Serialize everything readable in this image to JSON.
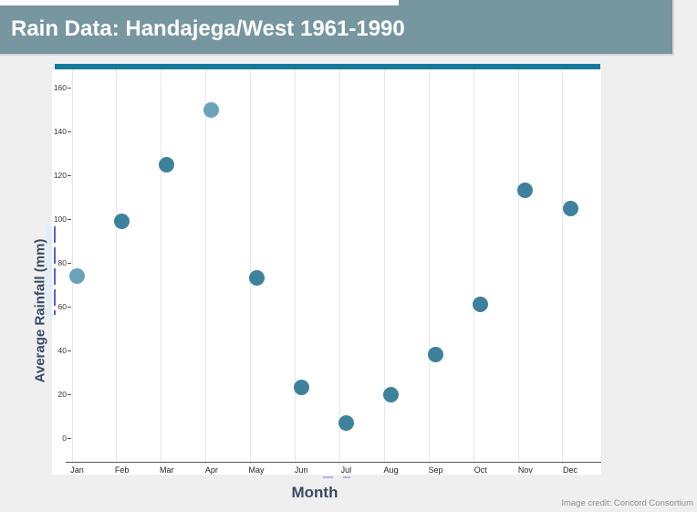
{
  "header": {
    "title": "Rain Data: Handajega/West 1961-1990",
    "bg_color": "#7696a0",
    "text_color": "#ffffff"
  },
  "chart": {
    "accent_bar_color": "#17799c",
    "credit": "Image credit: Concord Consortium"
  },
  "chart_data": {
    "type": "scatter",
    "title": "Rain Data: Handajega/West 1961-1990",
    "xlabel": "Month",
    "ylabel": "Average Rainfall (mm)",
    "categories": [
      "Jan",
      "Feb",
      "Mar",
      "Apr",
      "May",
      "Jun",
      "Jul",
      "Aug",
      "Sep",
      "Oct",
      "Nov",
      "Dec"
    ],
    "values": [
      74,
      99,
      125,
      150,
      73,
      23,
      7,
      20,
      38,
      61,
      113,
      105
    ],
    "yticks": [
      0,
      20,
      40,
      60,
      80,
      100,
      120,
      140,
      160
    ],
    "ylim": [
      0,
      168
    ],
    "grid": "vertical-only",
    "legend": "none",
    "point_color_default": "#3e819c",
    "point_color_light": "#68a3ba",
    "light_points": [
      "Jan",
      "Apr"
    ]
  }
}
